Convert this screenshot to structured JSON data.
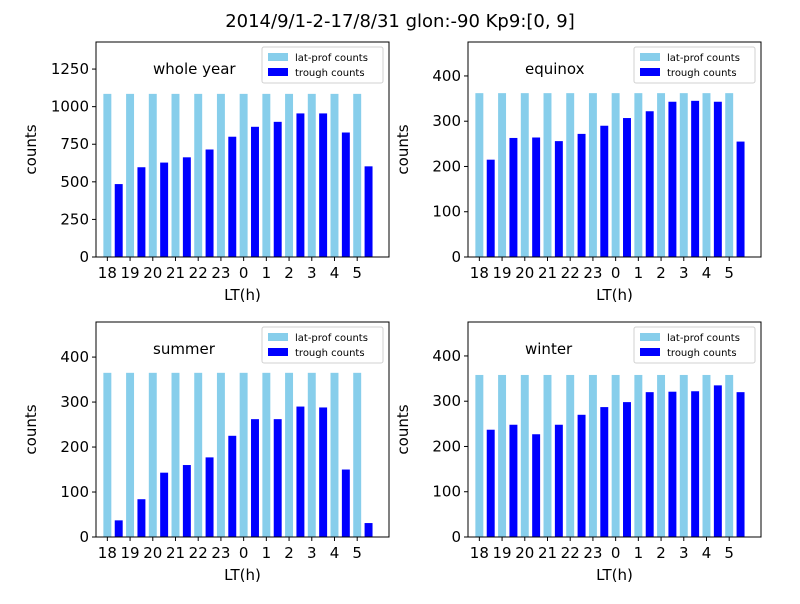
{
  "suptitle": "2014/9/1-2-17/8/31  glon:-90  Kp9:[0, 9]",
  "colors": {
    "lat_prof": "#87ceeb",
    "trough": "#0000ff"
  },
  "chart_data": [
    {
      "type": "bar",
      "title": "whole year",
      "xlabel": "LT(h)",
      "ylabel": "counts",
      "categories": [
        "18",
        "19",
        "20",
        "21",
        "22",
        "23",
        "0",
        "1",
        "2",
        "3",
        "4",
        "5"
      ],
      "ylim": [
        0,
        1430
      ],
      "yticks": [
        0,
        250,
        500,
        750,
        1000,
        1250
      ],
      "legend": "top-right",
      "series": [
        {
          "name": "lat-prof counts",
          "values": [
            1085,
            1085,
            1085,
            1085,
            1085,
            1085,
            1085,
            1085,
            1085,
            1085,
            1085,
            1085
          ]
        },
        {
          "name": "trough counts",
          "values": [
            485,
            597,
            628,
            663,
            715,
            800,
            866,
            899,
            955,
            955,
            828,
            603
          ]
        }
      ]
    },
    {
      "type": "bar",
      "title": "equinox",
      "xlabel": "LT(h)",
      "ylabel": "counts",
      "categories": [
        "18",
        "19",
        "20",
        "21",
        "22",
        "23",
        "0",
        "1",
        "2",
        "3",
        "4",
        "5"
      ],
      "ylim": [
        0,
        475
      ],
      "yticks": [
        0,
        100,
        200,
        300,
        400
      ],
      "legend": "top-right",
      "series": [
        {
          "name": "lat-prof counts",
          "values": [
            362,
            362,
            362,
            362,
            362,
            362,
            362,
            362,
            362,
            362,
            362,
            362
          ]
        },
        {
          "name": "trough counts",
          "values": [
            215,
            263,
            264,
            256,
            272,
            290,
            307,
            322,
            343,
            345,
            343,
            255
          ]
        }
      ]
    },
    {
      "type": "bar",
      "title": "summer",
      "xlabel": "LT(h)",
      "ylabel": "counts",
      "categories": [
        "18",
        "19",
        "20",
        "21",
        "22",
        "23",
        "0",
        "1",
        "2",
        "3",
        "4",
        "5"
      ],
      "ylim": [
        0,
        478
      ],
      "yticks": [
        0,
        100,
        200,
        300,
        400
      ],
      "legend": "top-right",
      "series": [
        {
          "name": "lat-prof counts",
          "values": [
            365,
            365,
            365,
            365,
            365,
            365,
            365,
            365,
            365,
            365,
            365,
            365
          ]
        },
        {
          "name": "trough counts",
          "values": [
            37,
            84,
            143,
            160,
            177,
            225,
            262,
            262,
            290,
            288,
            150,
            31
          ]
        }
      ]
    },
    {
      "type": "bar",
      "title": "winter",
      "xlabel": "LT(h)",
      "ylabel": "counts",
      "categories": [
        "18",
        "19",
        "20",
        "21",
        "22",
        "23",
        "0",
        "1",
        "2",
        "3",
        "4",
        "5"
      ],
      "ylim": [
        0,
        475
      ],
      "yticks": [
        0,
        100,
        200,
        300,
        400
      ],
      "legend": "top-right",
      "series": [
        {
          "name": "lat-prof counts",
          "values": [
            358,
            358,
            358,
            358,
            358,
            358,
            358,
            358,
            358,
            358,
            358,
            358
          ]
        },
        {
          "name": "trough counts",
          "values": [
            237,
            248,
            227,
            248,
            270,
            287,
            298,
            320,
            321,
            322,
            335,
            320
          ]
        }
      ]
    }
  ]
}
